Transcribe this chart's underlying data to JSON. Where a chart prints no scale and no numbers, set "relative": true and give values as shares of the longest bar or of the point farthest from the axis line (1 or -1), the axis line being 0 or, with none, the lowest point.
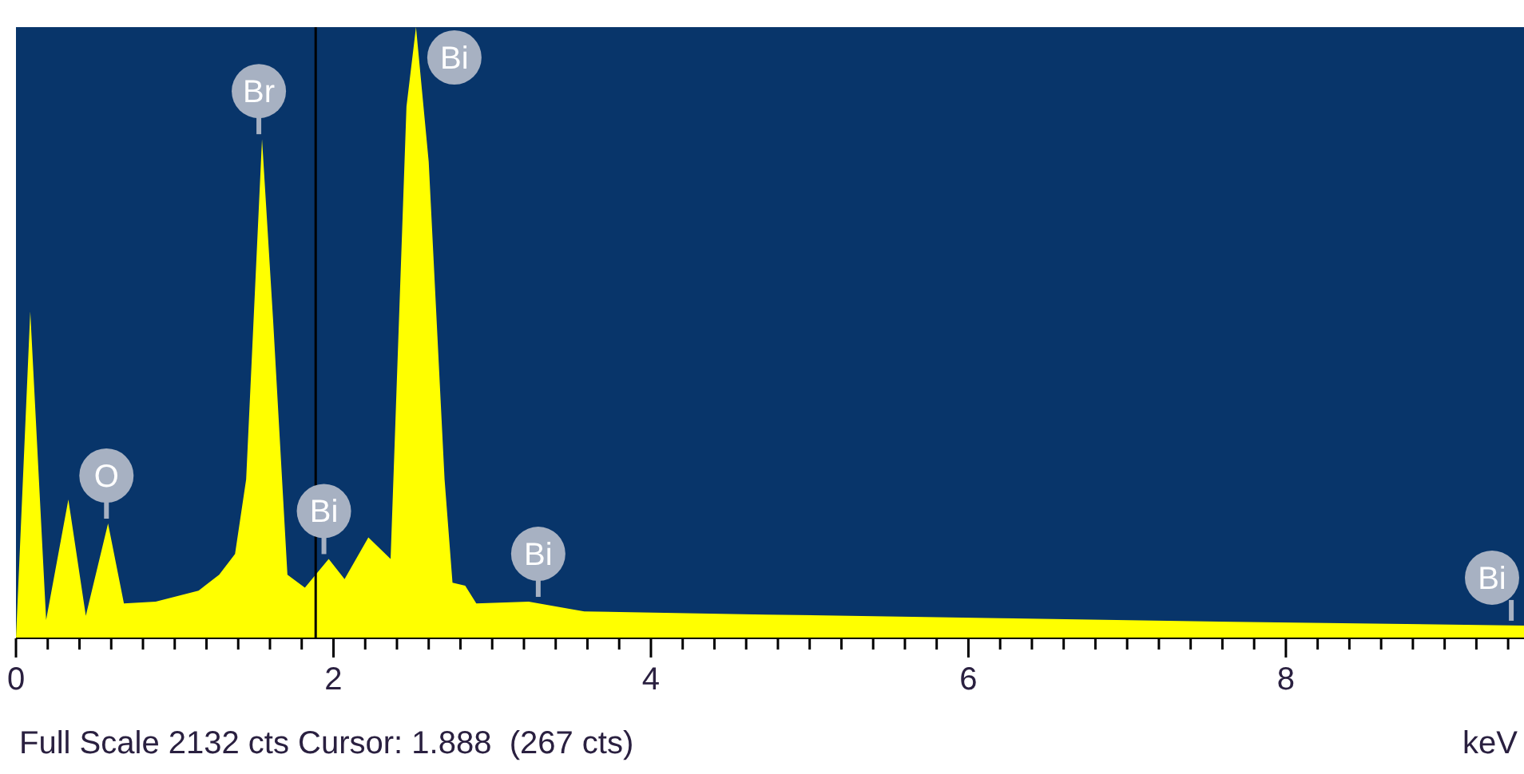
{
  "chart_data": {
    "type": "area",
    "relative": true,
    "xlabel": "keV",
    "x": [
      0,
      0.09,
      0.19,
      0.33,
      0.44,
      0.58,
      0.68,
      0.88,
      1.15,
      1.28,
      1.38,
      1.45,
      1.55,
      1.62,
      1.71,
      1.82,
      1.97,
      2.07,
      2.22,
      2.36,
      2.46,
      2.52,
      2.6,
      2.7,
      2.75,
      2.83,
      2.9,
      3.23,
      3.58,
      4.72,
      6.2,
      7.95,
      9.5
    ],
    "series": [
      {
        "color": "#ffff00",
        "values": [
          0,
          0.535,
          0.03,
          0.227,
          0.037,
          0.188,
          0.057,
          0.06,
          0.078,
          0.104,
          0.138,
          0.26,
          0.817,
          0.52,
          0.104,
          0.083,
          0.13,
          0.097,
          0.165,
          0.13,
          0.87,
          1,
          0.78,
          0.26,
          0.091,
          0.086,
          0.057,
          0.06,
          0.044,
          0.039,
          0.033,
          0.026,
          0.021
        ]
      }
    ],
    "xlim": [
      0,
      9.5
    ],
    "xticks": [
      0,
      {
        "value": 0.2,
        "label": null
      },
      {
        "value": 0.4,
        "label": null
      },
      {
        "value": 0.6,
        "label": null
      },
      {
        "value": 0.8,
        "label": null
      },
      {
        "value": 1,
        "label": null
      },
      {
        "value": 1.2,
        "label": null
      },
      {
        "value": 1.4,
        "label": null
      },
      {
        "value": 1.6,
        "label": null
      },
      {
        "value": 1.8,
        "label": null
      },
      2,
      {
        "value": 2.2,
        "label": null
      },
      {
        "value": 2.4,
        "label": null
      },
      {
        "value": 2.6,
        "label": null
      },
      {
        "value": 2.8,
        "label": null
      },
      {
        "value": 3,
        "label": null
      },
      {
        "value": 3.2,
        "label": null
      },
      {
        "value": 3.4,
        "label": null
      },
      {
        "value": 3.6,
        "label": null
      },
      {
        "value": 3.8,
        "label": null
      },
      4,
      {
        "value": 4.2,
        "label": null
      },
      {
        "value": 4.4,
        "label": null
      },
      {
        "value": 4.6,
        "label": null
      },
      {
        "value": 4.8,
        "label": null
      },
      {
        "value": 5,
        "label": null
      },
      {
        "value": 5.2,
        "label": null
      },
      {
        "value": 5.4,
        "label": null
      },
      {
        "value": 5.6,
        "label": null
      },
      {
        "value": 5.8,
        "label": null
      },
      6,
      {
        "value": 6.2,
        "label": null
      },
      {
        "value": 6.4,
        "label": null
      },
      {
        "value": 6.6,
        "label": null
      },
      {
        "value": 6.8,
        "label": null
      },
      {
        "value": 7,
        "label": null
      },
      {
        "value": 7.2,
        "label": null
      },
      {
        "value": 7.4,
        "label": null
      },
      {
        "value": 7.6,
        "label": null
      },
      {
        "value": 7.8,
        "label": null
      },
      8,
      {
        "value": 8.2,
        "label": null
      },
      {
        "value": 8.4,
        "label": null
      },
      {
        "value": 8.6,
        "label": null
      },
      {
        "value": 8.8,
        "label": null
      },
      {
        "value": 9,
        "label": null
      },
      {
        "value": 9.2,
        "label": null
      },
      {
        "value": 9.4,
        "label": null
      }
    ],
    "ref_lines": [
      {
        "axis": "x",
        "value": 1.888,
        "color": "#000000"
      }
    ],
    "annotations": [
      {
        "text": "O",
        "x": 0.57,
        "y": 0.188
      },
      {
        "text": "Br",
        "x": 1.53,
        "y": 0.817
      },
      {
        "text": "Bi",
        "x": 1.94,
        "y": 0.13
      },
      {
        "text": "Bi",
        "x": 2.48,
        "y": 1
      },
      {
        "text": "Bi",
        "x": 3.29,
        "y": 0.06
      },
      {
        "text": "Bi",
        "x": 9.42,
        "y": 0.021
      },
      "Full Scale 2132 cts Cursor: 1.888  (267 cts)"
    ],
    "grid": false,
    "legend": false
  }
}
